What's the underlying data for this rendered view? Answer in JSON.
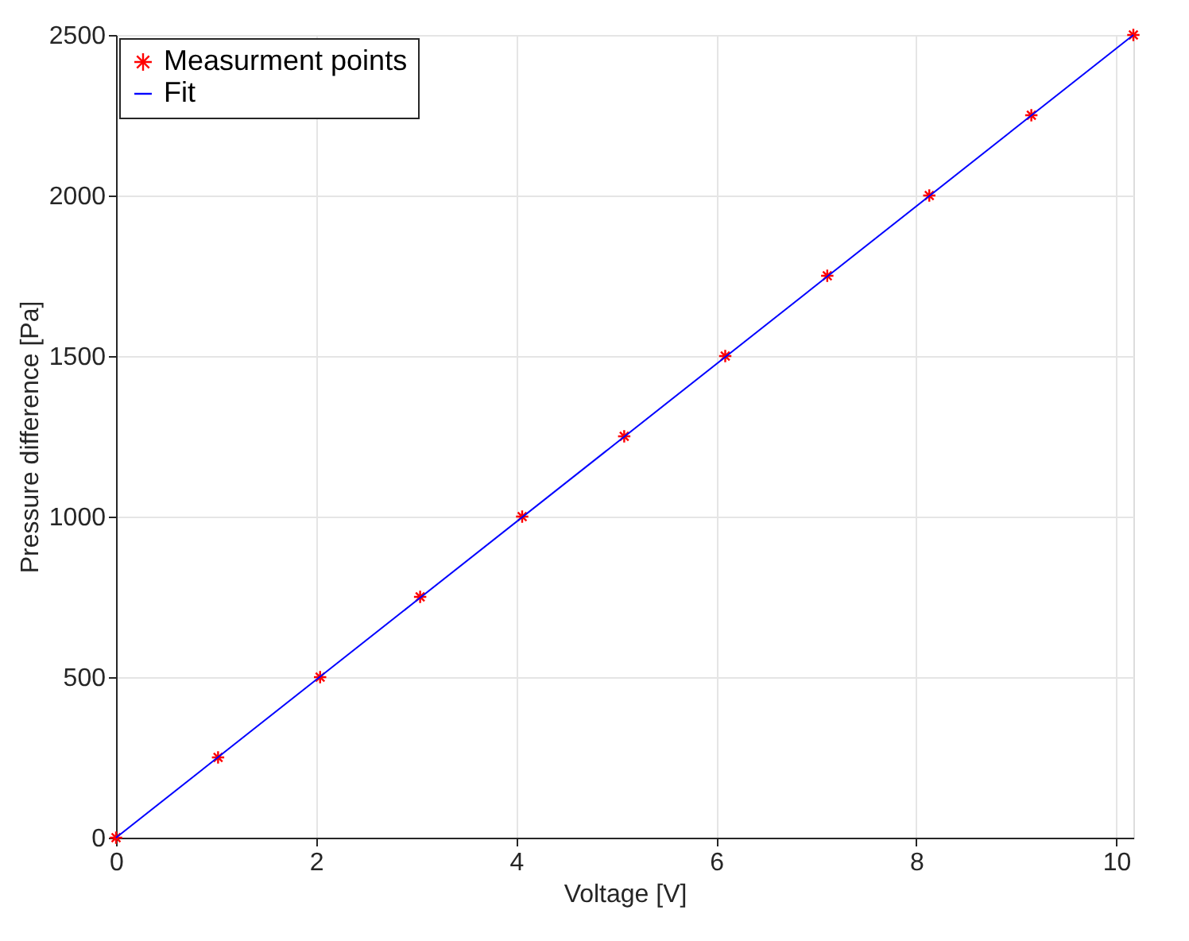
{
  "chart_data": {
    "type": "scatter",
    "xlabel": "Voltage [V]",
    "ylabel": "Pressure difference [Pa]",
    "xlim": [
      0,
      10.17
    ],
    "ylim": [
      0,
      2500
    ],
    "xticks": [
      0,
      2,
      4,
      6,
      8,
      10
    ],
    "yticks": [
      0,
      500,
      1000,
      1500,
      2000,
      2500
    ],
    "grid": true,
    "legend": "top left",
    "series": [
      {
        "name": "Measurment points",
        "marker": "cross",
        "color": "#ff0000",
        "x": [
          0,
          1.02,
          2.04,
          3.04,
          4.06,
          5.08,
          6.09,
          7.11,
          8.13,
          9.15,
          10.17
        ],
        "values": [
          0,
          250,
          500,
          750,
          1000,
          1250,
          1500,
          1750,
          2000,
          2250,
          2500
        ]
      },
      {
        "name": "Fit",
        "type": "line",
        "line_style": "solid",
        "marker": "none",
        "color": "#0000ff",
        "x": [
          0,
          10.17
        ],
        "values": [
          0,
          2500
        ]
      }
    ]
  }
}
